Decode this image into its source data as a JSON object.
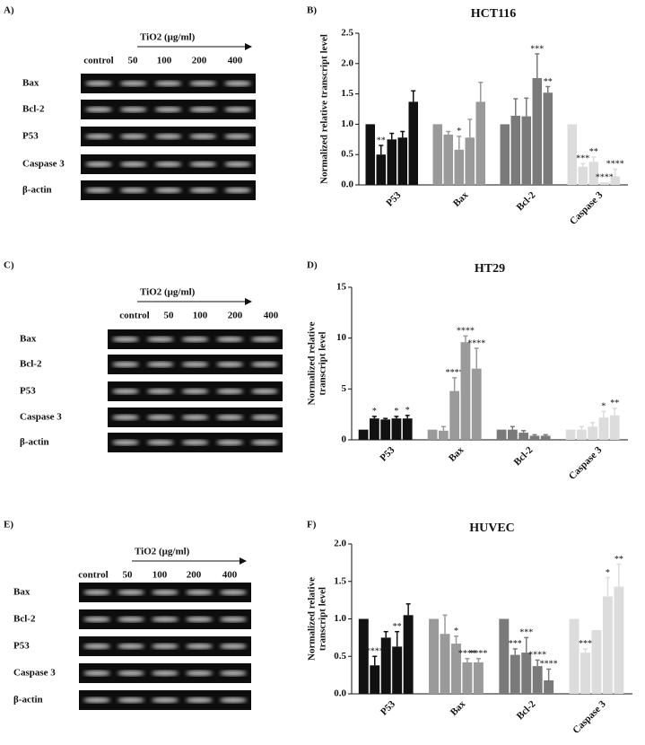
{
  "gels": [
    {
      "label": "A)",
      "treatment": "TiO2 (μg/ml)",
      "lanes": [
        "control",
        "50",
        "100",
        "200",
        "400"
      ],
      "genes": [
        "Bax",
        "Bcl-2",
        "P53",
        "Caspase 3",
        "β-actin"
      ]
    },
    {
      "label": "C)",
      "treatment": "TiO2 (μg/ml)",
      "lanes": [
        "control",
        "50",
        "100",
        "200",
        "400"
      ],
      "genes": [
        "Bax",
        "Bcl-2",
        "P53",
        "Caspase 3",
        "β-actin"
      ]
    },
    {
      "label": "E)",
      "treatment": "TiO2 (μg/ml)",
      "lanes": [
        "control",
        "50",
        "100",
        "200",
        "400"
      ],
      "genes": [
        "Bax",
        "Bcl-2",
        "P53",
        "Caspase 3",
        "β-actin"
      ]
    }
  ],
  "chart_data": [
    {
      "type": "bar",
      "panel": "B)",
      "title": "HCT116",
      "ylabel": [
        "Normalized relative transcript level"
      ],
      "categories": [
        "P53",
        "Bax",
        "Bcl-2",
        "Caspase 3"
      ],
      "colors": [
        "#111111",
        "#9a9a9a",
        "#7a7a7a",
        "#dcdcdc"
      ],
      "values": [
        [
          1.0,
          0.5,
          0.75,
          0.78,
          1.37
        ],
        [
          1.0,
          0.83,
          0.58,
          0.78,
          1.37
        ],
        [
          1.0,
          1.14,
          1.13,
          1.76,
          1.52
        ],
        [
          1.0,
          0.3,
          0.38,
          0.04,
          0.14
        ]
      ],
      "errors": [
        [
          0,
          0.15,
          0.1,
          0.1,
          0.18
        ],
        [
          0,
          0.05,
          0.22,
          0.3,
          0.32
        ],
        [
          0,
          0.28,
          0.3,
          0.4,
          0.1
        ],
        [
          0,
          0.05,
          0.08,
          0,
          0.12
        ]
      ],
      "significance": [
        [
          null,
          "**",
          null,
          null,
          null
        ],
        [
          null,
          null,
          "*",
          null,
          null
        ],
        [
          null,
          null,
          null,
          "***",
          "**"
        ],
        [
          null,
          "***",
          "**",
          "****",
          "****"
        ]
      ],
      "ylim": [
        0,
        2.5
      ],
      "yticks": [
        {
          "value": 0,
          "label": "0.0"
        },
        0.5,
        {
          "value": 1,
          "label": "1.0"
        },
        1.5,
        {
          "value": 2,
          "label": "2.0"
        },
        2.5
      ]
    },
    {
      "type": "bar",
      "panel": "D)",
      "title": "HT29",
      "ylabel": [
        "Normalized relative",
        "transcript level"
      ],
      "categories": [
        "P53",
        "Bax",
        "Bcl-2",
        "Caspase 3"
      ],
      "colors": [
        "#111111",
        "#9a9a9a",
        "#7a7a7a",
        "#dcdcdc"
      ],
      "values": [
        [
          1,
          2.1,
          2,
          2.1,
          2.1
        ],
        [
          1,
          0.9,
          4.8,
          9.6,
          7
        ],
        [
          1,
          1,
          0.7,
          0.4,
          0.4
        ],
        [
          1,
          1,
          1.3,
          2.2,
          2.4
        ]
      ],
      "errors": [
        [
          0,
          0.2,
          0.1,
          0.2,
          0.3
        ],
        [
          0,
          0.4,
          1.3,
          0.6,
          2
        ],
        [
          0,
          0.3,
          0.2,
          0.1,
          0.1
        ],
        [
          0,
          0.3,
          0.4,
          0.6,
          0.7
        ]
      ],
      "significance": [
        [
          null,
          "*",
          null,
          "*",
          "*"
        ],
        [
          null,
          null,
          "****",
          "****",
          "****"
        ],
        [
          null,
          null,
          null,
          null,
          null
        ],
        [
          null,
          null,
          null,
          "*",
          "**"
        ]
      ],
      "ylim": [
        0,
        15
      ],
      "yticks": [
        0,
        5,
        10,
        15
      ]
    },
    {
      "type": "bar",
      "panel": "F)",
      "title": "HUVEC",
      "ylabel": [
        "Normalized relative",
        "transcript level"
      ],
      "categories": [
        "P53",
        "Bax",
        "Bcl-2",
        "Caspase 3"
      ],
      "colors": [
        "#111111",
        "#9a9a9a",
        "#7a7a7a",
        "#dcdcdc"
      ],
      "values": [
        [
          1,
          0.38,
          0.75,
          0.63,
          1.05
        ],
        [
          1,
          0.8,
          0.67,
          0.42,
          0.42
        ],
        [
          1,
          0.52,
          0.55,
          0.37,
          0.18
        ],
        [
          1,
          0.55,
          0.85,
          1.3,
          1.43
        ]
      ],
      "errors": [
        [
          0,
          0.12,
          0.08,
          0.2,
          0.15
        ],
        [
          0,
          0.25,
          0.1,
          0.05,
          0.05
        ],
        [
          0,
          0.08,
          0.2,
          0.08,
          0.15
        ],
        [
          0,
          0.05,
          0,
          0.25,
          0.3
        ]
      ],
      "significance": [
        [
          null,
          "****",
          null,
          "**",
          null
        ],
        [
          null,
          null,
          "*",
          "****",
          "****"
        ],
        [
          null,
          "***",
          "***",
          "****",
          "****"
        ],
        [
          null,
          "***",
          null,
          "*",
          "**"
        ]
      ],
      "ylim": [
        0,
        2
      ],
      "yticks": [
        {
          "value": 0,
          "label": "0.0"
        },
        0.5,
        {
          "value": 1,
          "label": "1.0"
        },
        1.5,
        {
          "value": 2,
          "label": "2.0"
        }
      ]
    }
  ]
}
